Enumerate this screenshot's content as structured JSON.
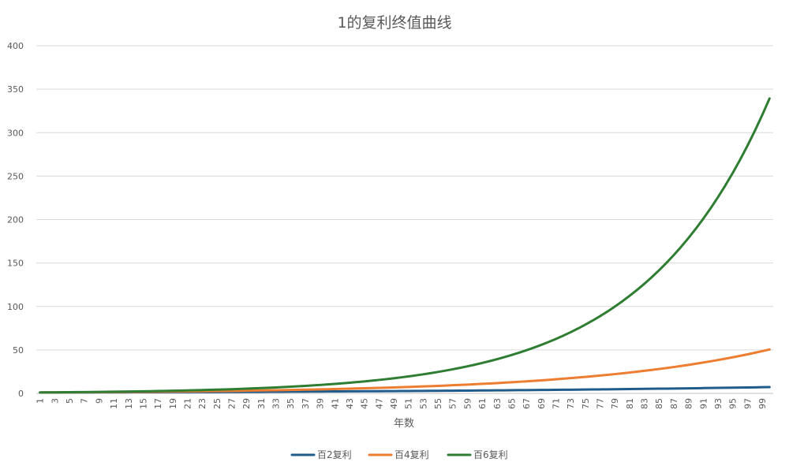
{
  "chart_data": {
    "type": "line",
    "title": "1的复利终值曲线",
    "xlabel": "年数",
    "ylabel": "",
    "x": [
      1,
      2,
      3,
      4,
      5,
      6,
      7,
      8,
      9,
      10,
      11,
      12,
      13,
      14,
      15,
      16,
      17,
      18,
      19,
      20,
      21,
      22,
      23,
      24,
      25,
      26,
      27,
      28,
      29,
      30,
      31,
      32,
      33,
      34,
      35,
      36,
      37,
      38,
      39,
      40,
      41,
      42,
      43,
      44,
      45,
      46,
      47,
      48,
      49,
      50,
      51,
      52,
      53,
      54,
      55,
      56,
      57,
      58,
      59,
      60,
      61,
      62,
      63,
      64,
      65,
      66,
      67,
      68,
      69,
      70,
      71,
      72,
      73,
      74,
      75,
      76,
      77,
      78,
      79,
      80,
      81,
      82,
      83,
      84,
      85,
      86,
      87,
      88,
      89,
      90,
      91,
      92,
      93,
      94,
      95,
      96,
      97,
      98,
      99,
      100
    ],
    "x_tick_labels": [
      "1",
      "3",
      "5",
      "7",
      "9",
      "11",
      "13",
      "15",
      "17",
      "19",
      "21",
      "23",
      "25",
      "27",
      "29",
      "31",
      "33",
      "35",
      "37",
      "39",
      "41",
      "43",
      "45",
      "47",
      "49",
      "51",
      "53",
      "55",
      "57",
      "59",
      "61",
      "63",
      "65",
      "67",
      "69",
      "71",
      "73",
      "75",
      "77",
      "79",
      "81",
      "83",
      "85",
      "87",
      "89",
      "91",
      "93",
      "95",
      "97",
      "99"
    ],
    "ylim": [
      0,
      400
    ],
    "y_ticks": [
      0,
      50,
      100,
      150,
      200,
      250,
      300,
      350,
      400
    ],
    "grid": true,
    "legend_position": "bottom",
    "series": [
      {
        "name": "百2复利",
        "color": "#1f5c8b",
        "rate": 0.02,
        "values": [
          1.02,
          1.04,
          1.06,
          1.08,
          1.1,
          1.13,
          1.15,
          1.17,
          1.2,
          1.22,
          1.24,
          1.27,
          1.29,
          1.32,
          1.35,
          1.37,
          1.4,
          1.43,
          1.46,
          1.49,
          1.52,
          1.55,
          1.58,
          1.61,
          1.64,
          1.67,
          1.71,
          1.74,
          1.78,
          1.81,
          1.85,
          1.88,
          1.92,
          1.96,
          2,
          2.04,
          2.08,
          2.12,
          2.16,
          2.21,
          2.25,
          2.3,
          2.34,
          2.39,
          2.44,
          2.49,
          2.54,
          2.59,
          2.64,
          2.69,
          2.75,
          2.8,
          2.86,
          2.91,
          2.97,
          3.03,
          3.09,
          3.15,
          3.22,
          3.28,
          3.35,
          3.41,
          3.48,
          3.55,
          3.62,
          3.7,
          3.77,
          3.85,
          3.92,
          4,
          4.08,
          4.16,
          4.24,
          4.33,
          4.42,
          4.5,
          4.59,
          4.69,
          4.78,
          4.88,
          4.97,
          5.07,
          5.18,
          5.28,
          5.39,
          5.49,
          5.6,
          5.72,
          5.83,
          5.95,
          6.07,
          6.19,
          6.31,
          6.44,
          6.57,
          6.7,
          6.83,
          6.97,
          7.11,
          7.24
        ]
      },
      {
        "name": "百4复利",
        "color": "#ed7d31",
        "rate": 0.04,
        "values": [
          1.04,
          1.08,
          1.12,
          1.17,
          1.22,
          1.27,
          1.32,
          1.37,
          1.42,
          1.48,
          1.54,
          1.6,
          1.67,
          1.73,
          1.8,
          1.87,
          1.95,
          2.03,
          2.11,
          2.19,
          2.28,
          2.37,
          2.46,
          2.56,
          2.67,
          2.77,
          2.88,
          3,
          3.12,
          3.24,
          3.37,
          3.51,
          3.65,
          3.79,
          3.95,
          4.1,
          4.27,
          4.44,
          4.62,
          4.8,
          4.99,
          5.19,
          5.4,
          5.62,
          5.84,
          6.07,
          6.32,
          6.57,
          6.83,
          7.11,
          7.39,
          7.69,
          8,
          8.32,
          8.65,
          9,
          9.36,
          9.73,
          10.12,
          10.52,
          10.95,
          11.38,
          11.84,
          12.31,
          12.8,
          13.32,
          13.85,
          14.4,
          14.98,
          15.58,
          16.2,
          16.85,
          17.52,
          18.22,
          18.95,
          19.71,
          20.5,
          21.32,
          22.17,
          23.05,
          23.98,
          24.94,
          25.93,
          26.97,
          28.05,
          29.17,
          30.34,
          31.55,
          32.81,
          34.12,
          35.49,
          36.91,
          38.39,
          39.92,
          41.52,
          43.18,
          44.91,
          46.7,
          48.57,
          50.5
        ]
      },
      {
        "name": "百6复利",
        "color": "#2e7d32",
        "rate": 0.06,
        "values": [
          1.06,
          1.12,
          1.19,
          1.26,
          1.34,
          1.42,
          1.5,
          1.59,
          1.69,
          1.79,
          1.9,
          2.01,
          2.13,
          2.26,
          2.4,
          2.54,
          2.69,
          2.85,
          3.03,
          3.21,
          3.4,
          3.6,
          3.82,
          4.05,
          4.29,
          4.55,
          4.82,
          5.11,
          5.42,
          5.74,
          6.09,
          6.45,
          6.84,
          7.25,
          7.69,
          8.15,
          8.64,
          9.15,
          9.7,
          10.29,
          10.9,
          11.56,
          12.25,
          12.99,
          13.76,
          14.59,
          15.47,
          16.39,
          17.38,
          18.42,
          19.53,
          20.7,
          21.94,
          23.26,
          24.65,
          26.13,
          27.7,
          29.36,
          31.12,
          32.99,
          34.97,
          37.06,
          39.29,
          41.65,
          44.14,
          46.79,
          49.6,
          52.58,
          55.73,
          59.08,
          62.62,
          66.38,
          70.36,
          74.58,
          79.06,
          83.8,
          88.83,
          94.16,
          99.81,
          105.8,
          112.15,
          118.88,
          126.01,
          133.57,
          141.58,
          150.08,
          159.08,
          168.63,
          178.75,
          189.47,
          200.84,
          212.89,
          225.66,
          239.2,
          253.55,
          268.77,
          284.89,
          301.98,
          320.1,
          339.3
        ]
      }
    ]
  }
}
